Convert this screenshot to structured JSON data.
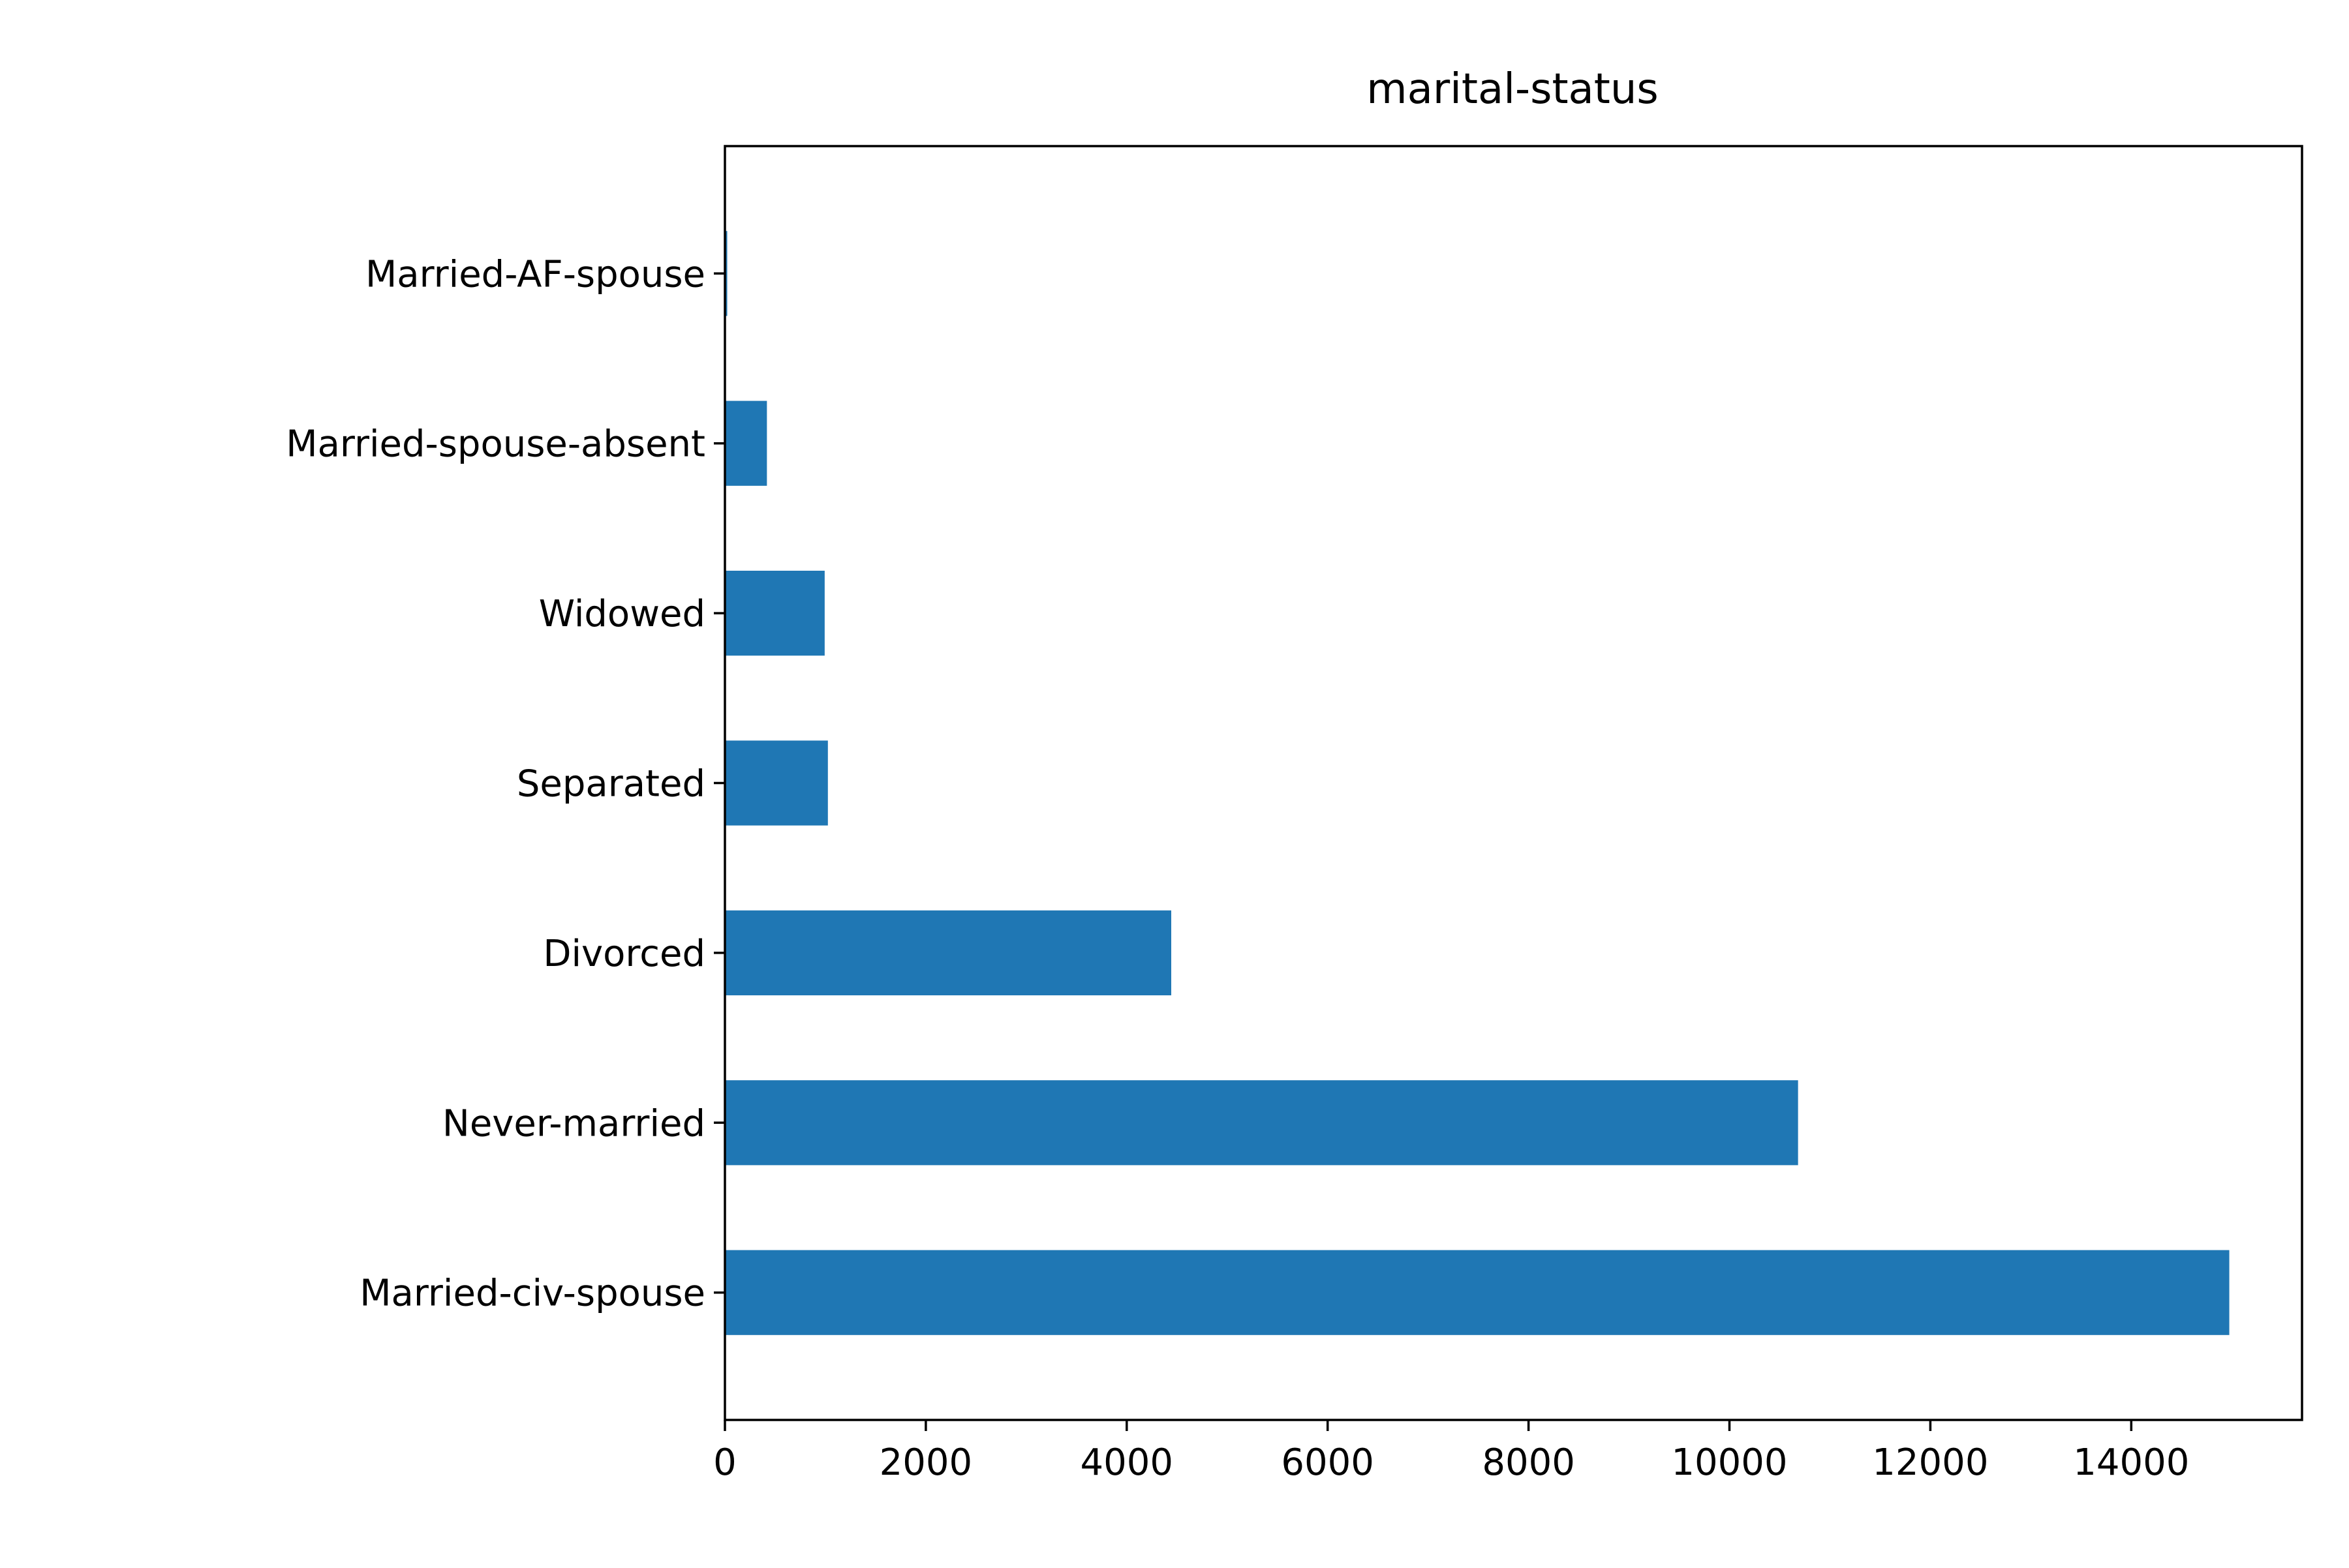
{
  "chart_data": {
    "type": "bar",
    "orientation": "horizontal",
    "title": "marital-status",
    "xlabel": "",
    "ylabel": "",
    "categories": [
      "Married-civ-spouse",
      "Never-married",
      "Divorced",
      "Separated",
      "Widowed",
      "Married-spouse-absent",
      "Married-AF-spouse"
    ],
    "values": [
      14976,
      10683,
      4443,
      1025,
      993,
      418,
      23
    ],
    "xlim": [
      0,
      15700
    ],
    "xticks": [
      "0",
      "2000",
      "4000",
      "6000",
      "8000",
      "10000",
      "12000",
      "14000"
    ],
    "bar_color": "#1f77b4",
    "grid": false,
    "legend": "none"
  }
}
